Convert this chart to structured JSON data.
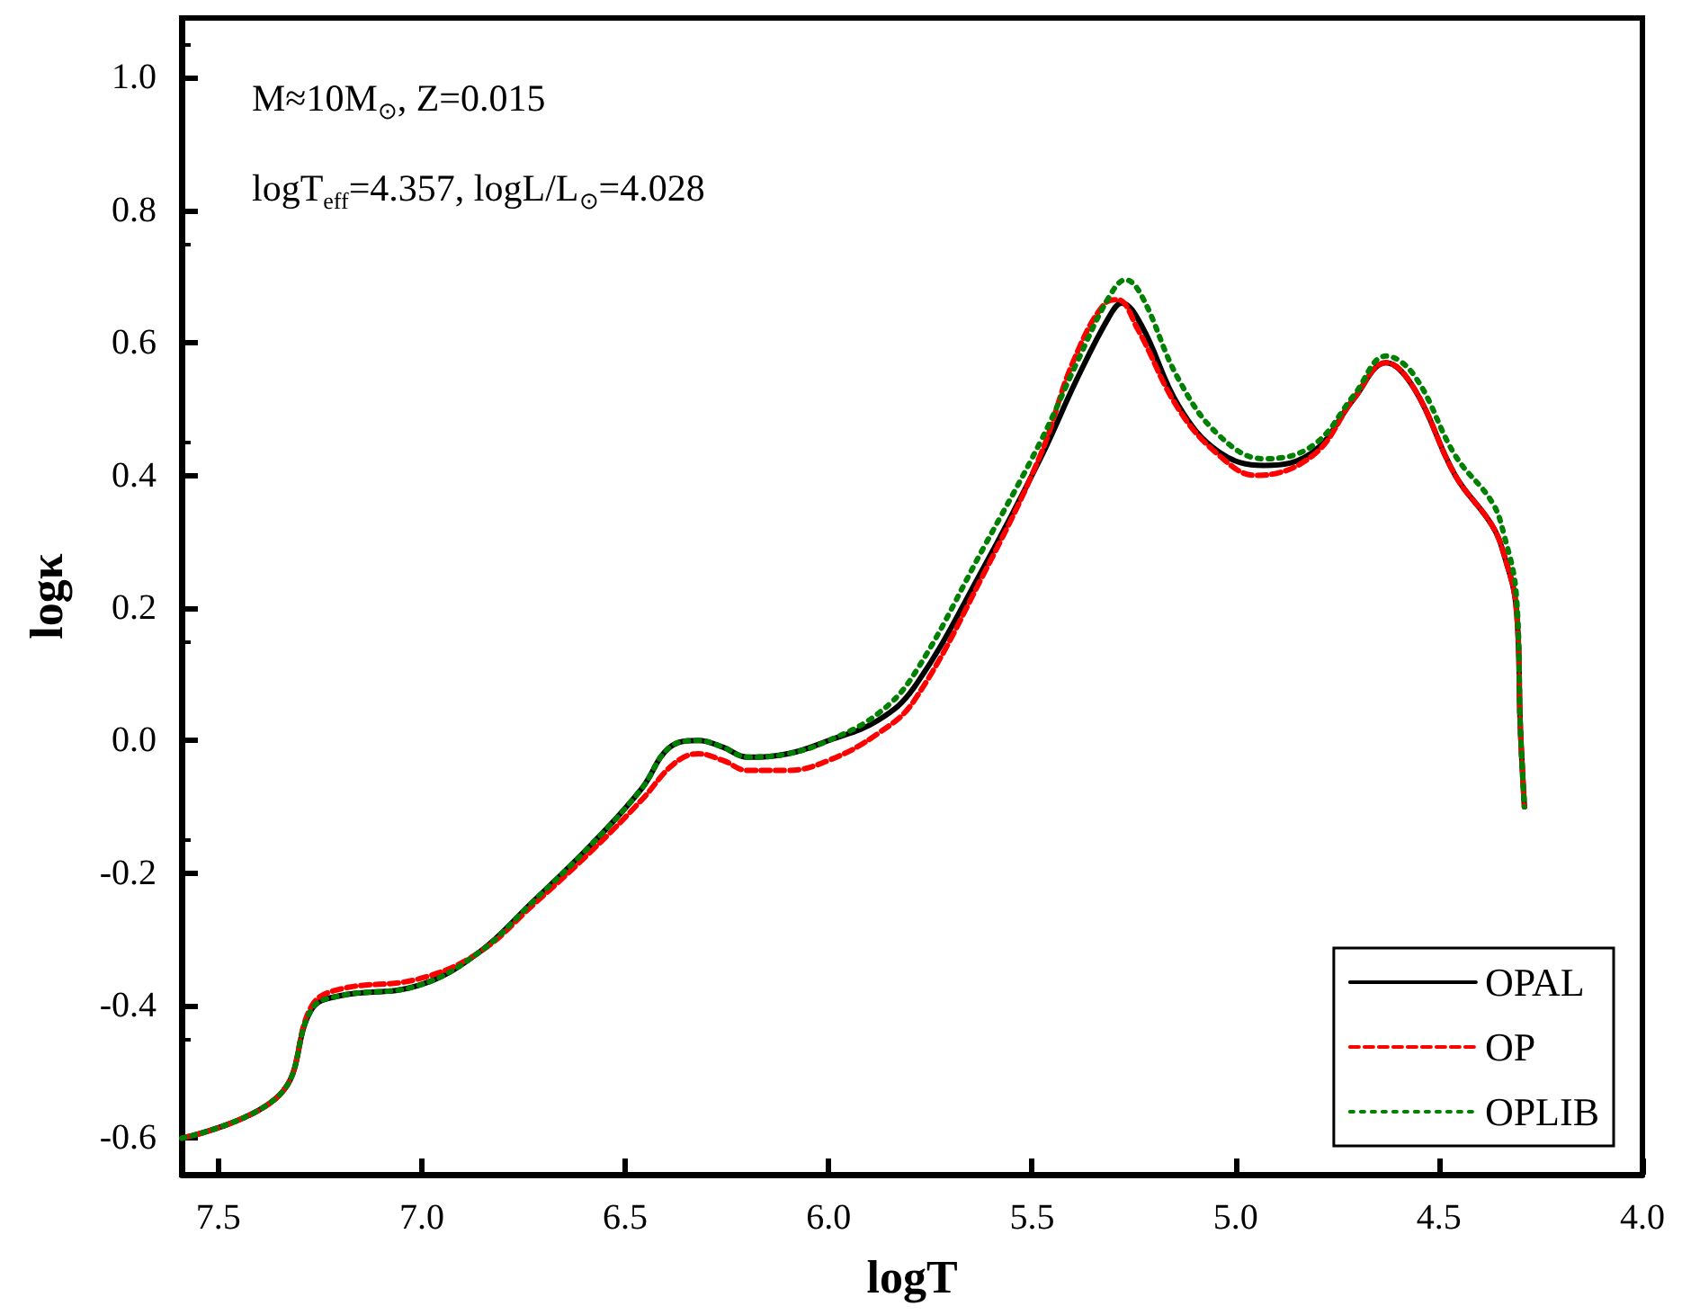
{
  "chart_data": {
    "type": "line",
    "xlabel": "logT",
    "ylabel": "logκ",
    "xlim": [
      7.59,
      4.0
    ],
    "ylim": [
      -0.655,
      1.09
    ],
    "xticks": [
      {
        "value": 7.5,
        "label": "7.5"
      },
      {
        "value": 7.0,
        "label": "7.0"
      },
      {
        "value": 6.5,
        "label": "6.5"
      },
      {
        "value": 6.0,
        "label": "6.0"
      },
      {
        "value": 5.5,
        "label": "5.5"
      },
      {
        "value": 5.0,
        "label": "5.0"
      },
      {
        "value": 4.5,
        "label": "4.5"
      },
      {
        "value": 4.0,
        "label": "4.0"
      }
    ],
    "yticks": [
      {
        "value": -0.6,
        "label": "-0.6"
      },
      {
        "value": -0.4,
        "label": "-0.4"
      },
      {
        "value": -0.2,
        "label": "-0.2"
      },
      {
        "value": 0,
        "label": "0.0"
      },
      {
        "value": 0.2,
        "label": "0.2"
      },
      {
        "value": 0.4,
        "label": "0.4"
      },
      {
        "value": 0.6,
        "label": "0.6"
      },
      {
        "value": 0.8,
        "label": "0.8"
      },
      {
        "value": 1.0,
        "label": "1.0"
      }
    ],
    "grid": false,
    "legend": "bottom right",
    "annotations": [
      "M≈10M$_{⊙}$, Z=0.015",
      "logT$_{eff}$=4.357, logL/L$_{⊙}$=4.028"
    ],
    "series": [
      {
        "name": "OPAL",
        "color": "#000000",
        "line_style": "solid",
        "x": [
          7.59,
          7.35,
          7.27,
          7.2,
          7.01,
          6.86,
          6.73,
          6.58,
          6.46,
          6.39,
          6.32,
          6.26,
          6.2,
          6.1,
          6.0,
          5.88,
          5.79,
          5.62,
          5.48,
          5.39,
          5.31,
          5.28,
          5.23,
          5.14,
          5.04,
          4.93,
          4.81,
          4.71,
          4.63,
          4.56,
          4.46,
          4.37,
          4.34,
          4.31,
          4.3,
          4.29
        ],
        "values": [
          -0.6,
          -0.535,
          -0.405,
          -0.385,
          -0.37,
          -0.32,
          -0.245,
          -0.155,
          -0.073,
          -0.01,
          0.0,
          -0.01,
          -0.025,
          -0.02,
          0.0,
          0.03,
          0.08,
          0.26,
          0.425,
          0.545,
          0.64,
          0.66,
          0.625,
          0.505,
          0.435,
          0.415,
          0.435,
          0.515,
          0.57,
          0.53,
          0.4,
          0.325,
          0.28,
          0.2,
          0.02,
          -0.1
        ]
      },
      {
        "name": "OP",
        "color": "#ff0000",
        "line_style": "dashed",
        "x": [
          7.59,
          7.35,
          7.27,
          7.2,
          7.01,
          6.86,
          6.73,
          6.58,
          6.46,
          6.38,
          6.32,
          6.26,
          6.2,
          6.1,
          6.0,
          5.88,
          5.79,
          5.62,
          5.48,
          5.4,
          5.32,
          5.29,
          5.24,
          5.14,
          5.04,
          4.95,
          4.81,
          4.71,
          4.63,
          4.56,
          4.46,
          4.37,
          4.34,
          4.31,
          4.3,
          4.29
        ],
        "values": [
          -0.6,
          -0.535,
          -0.4,
          -0.375,
          -0.36,
          -0.32,
          -0.25,
          -0.165,
          -0.09,
          -0.035,
          -0.02,
          -0.03,
          -0.045,
          -0.045,
          -0.03,
          0.01,
          0.06,
          0.25,
          0.43,
          0.57,
          0.66,
          0.665,
          0.62,
          0.5,
          0.43,
          0.4,
          0.43,
          0.515,
          0.57,
          0.53,
          0.4,
          0.325,
          0.28,
          0.2,
          0.02,
          -0.1
        ]
      },
      {
        "name": "OPLIB",
        "color": "#008000",
        "line_style": "dotted",
        "x": [
          7.59,
          7.35,
          7.27,
          7.2,
          7.01,
          6.86,
          6.73,
          6.58,
          6.46,
          6.39,
          6.32,
          6.26,
          6.2,
          6.1,
          6.0,
          5.88,
          5.79,
          5.62,
          5.48,
          5.39,
          5.31,
          5.27,
          5.23,
          5.14,
          5.04,
          4.93,
          4.81,
          4.71,
          4.63,
          4.56,
          4.46,
          4.37,
          4.34,
          4.31,
          4.3,
          4.29
        ],
        "values": [
          -0.6,
          -0.535,
          -0.405,
          -0.385,
          -0.37,
          -0.32,
          -0.245,
          -0.155,
          -0.073,
          -0.01,
          0.0,
          -0.01,
          -0.025,
          -0.02,
          0.0,
          0.04,
          0.1,
          0.29,
          0.45,
          0.57,
          0.67,
          0.695,
          0.67,
          0.545,
          0.46,
          0.425,
          0.445,
          0.52,
          0.58,
          0.55,
          0.43,
          0.36,
          0.31,
          0.22,
          0.02,
          -0.1
        ]
      }
    ]
  }
}
